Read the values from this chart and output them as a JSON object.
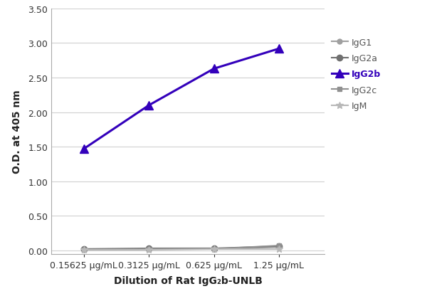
{
  "x_labels": [
    "0.15625 μg/mL",
    "0.3125 μg/mL",
    "0.625 μg/mL",
    "1.25 μg/mL"
  ],
  "x_positions": [
    1,
    2,
    3,
    4
  ],
  "series": [
    {
      "label": "IgG1",
      "color": "#a0a0a0",
      "linewidth": 1.5,
      "marker": "o",
      "markersize": 5,
      "values": [
        0.02,
        0.02,
        0.02,
        0.05
      ],
      "zorder": 2
    },
    {
      "label": "IgG2a",
      "color": "#707070",
      "linewidth": 1.5,
      "marker": "o",
      "markersize": 6,
      "values": [
        0.02,
        0.03,
        0.03,
        0.06
      ],
      "zorder": 2
    },
    {
      "label": "IgG2b",
      "color": "#3300bb",
      "linewidth": 2.2,
      "marker": "^",
      "markersize": 8,
      "values": [
        1.47,
        2.1,
        2.63,
        2.92
      ],
      "zorder": 3
    },
    {
      "label": "IgG2c",
      "color": "#909090",
      "linewidth": 1.5,
      "marker": "s",
      "markersize": 5,
      "values": [
        0.01,
        0.02,
        0.02,
        0.07
      ],
      "zorder": 2
    },
    {
      "label": "IgM",
      "color": "#b8b8b8",
      "linewidth": 1.5,
      "marker": "*",
      "markersize": 7,
      "values": [
        0.01,
        0.01,
        0.02,
        0.02
      ],
      "zorder": 2
    }
  ],
  "xlabel": "Dilution of Rat IgG₂b-UNLB",
  "ylabel": "O.D. at 405 nm",
  "ylim": [
    -0.05,
    3.5
  ],
  "yticks": [
    0.0,
    0.5,
    1.0,
    1.5,
    2.0,
    2.5,
    3.0,
    3.5
  ],
  "grid_color": "#d0d0d0",
  "background_color": "#ffffff",
  "legend_fontsize": 9,
  "axis_fontsize": 10,
  "tick_fontsize": 9
}
